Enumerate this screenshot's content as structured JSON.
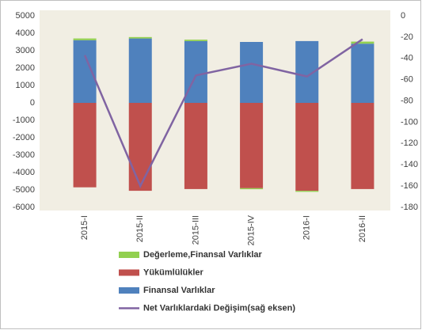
{
  "chart_data": {
    "type": "bar",
    "categories": [
      "2015-I",
      "2015-II",
      "2015-III",
      "2015-IV",
      "2016-I",
      "2016-II"
    ],
    "series": [
      {
        "name": "Değerleme,Finansal Varlıklar",
        "color": "#92d050",
        "values": [
          100,
          80,
          80,
          -60,
          -60,
          120
        ]
      },
      {
        "name": "Yükümlülükler",
        "color": "#c0504d",
        "values": [
          -4850,
          -5050,
          -4950,
          -4900,
          -5050,
          -4950
        ]
      },
      {
        "name": "Finansal Varlıklar",
        "color": "#4f81bd",
        "values": [
          3600,
          3700,
          3550,
          3500,
          3550,
          3400
        ]
      },
      {
        "name": "Net Varlıklardaki Değişim(sağ eksen)",
        "color": "#8064a2",
        "type": "line",
        "axis": "y2",
        "values": [
          -37,
          -160,
          -56,
          -45,
          -57,
          -22
        ]
      }
    ],
    "ylim": [
      -6000,
      5000
    ],
    "yticks": [
      5000,
      4000,
      3000,
      2000,
      1000,
      0,
      -1000,
      -2000,
      -3000,
      -4000,
      -5000,
      -6000
    ],
    "y2lim": [
      -180,
      0
    ],
    "y2ticks": [
      0,
      -20,
      -40,
      -60,
      -80,
      -100,
      -120,
      -140,
      -160,
      -180
    ],
    "stacked": true,
    "grid": false
  }
}
